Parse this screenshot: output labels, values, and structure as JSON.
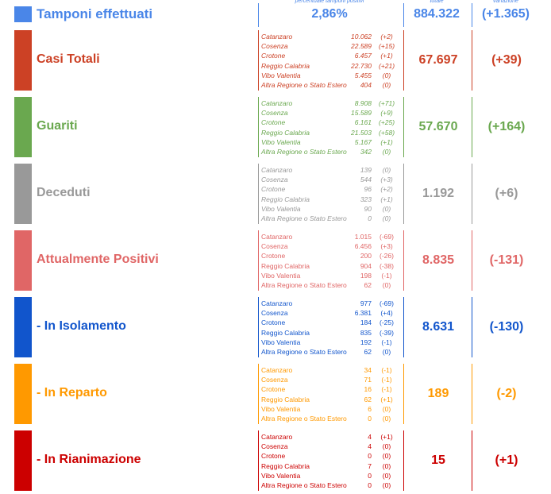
{
  "header": {
    "label": "Tamponi effettuati",
    "color": "#4a86e8",
    "percent_caption": "percentuale tamponi positivi",
    "percent": "2,86%",
    "total_caption": "totale",
    "total": "884.322",
    "variation_caption": "variazione",
    "variation": "(+1.365)"
  },
  "sections": [
    {
      "label": "Casi Totali",
      "color": "#cc4125",
      "total": "67.697",
      "variation": "(+39)",
      "rows": [
        [
          "Catanzaro",
          "10.062",
          "(+2)"
        ],
        [
          "Cosenza",
          "22.589",
          "(+15)"
        ],
        [
          "Crotone",
          "6.457",
          "(+1)"
        ],
        [
          "Reggio Calabria",
          "22.730",
          "(+21)"
        ],
        [
          "Vibo Valentia",
          "5.455",
          "(0)"
        ],
        [
          "Altra Regione o Stato Estero",
          "404",
          "(0)"
        ]
      ]
    },
    {
      "label": "Guariti",
      "color": "#6aa84f",
      "total": "57.670",
      "variation": "(+164)",
      "rows": [
        [
          "Catanzaro",
          "8.908",
          "(+71)"
        ],
        [
          "Cosenza",
          "15.589",
          "(+9)"
        ],
        [
          "Crotone",
          "6.161",
          "(+25)"
        ],
        [
          "Reggio Calabria",
          "21.503",
          "(+58)"
        ],
        [
          "Vibo Valentia",
          "5.167",
          "(+1)"
        ],
        [
          "Altra Regione o Stato Estero",
          "342",
          "(0)"
        ]
      ]
    },
    {
      "label": "Deceduti",
      "color": "#999999",
      "total": "1.192",
      "variation": "(+6)",
      "rows": [
        [
          "Catanzaro",
          "139",
          "(0)"
        ],
        [
          "Cosenza",
          "544",
          "(+3)"
        ],
        [
          "Crotone",
          "96",
          "(+2)"
        ],
        [
          "Reggio Calabria",
          "323",
          "(+1)"
        ],
        [
          "Vibo Valentia",
          "90",
          "(0)"
        ],
        [
          "Altra Regione o Stato Estero",
          "0",
          "(0)"
        ]
      ]
    },
    {
      "label": "Attualmente Positivi",
      "color": "#e06666",
      "total": "8.835",
      "variation": "(-131)",
      "rows": [
        [
          "Catanzaro",
          "1.015",
          "(-69)"
        ],
        [
          "Cosenza",
          "6.456",
          "(+3)"
        ],
        [
          "Crotone",
          "200",
          "(-26)"
        ],
        [
          "Reggio Calabria",
          "904",
          "(-38)"
        ],
        [
          "Vibo Valentia",
          "198",
          "(-1)"
        ],
        [
          "Altra Regione o Stato Estero",
          "62",
          "(0)"
        ]
      ]
    },
    {
      "label": "- In Isolamento",
      "color": "#1155cc",
      "total": "8.631",
      "variation": "(-130)",
      "rows": [
        [
          "Catanzaro",
          "977",
          "(-69)"
        ],
        [
          "Cosenza",
          "6.381",
          "(+4)"
        ],
        [
          "Crotone",
          "184",
          "(-25)"
        ],
        [
          "Reggio Calabria",
          "835",
          "(-39)"
        ],
        [
          "Vibo Valentia",
          "192",
          "(-1)"
        ],
        [
          "Altra Regione o Stato Estero",
          "62",
          "(0)"
        ]
      ]
    },
    {
      "label": "- In Reparto",
      "color": "#ff9900",
      "total": "189",
      "variation": "(-2)",
      "rows": [
        [
          "Catanzaro",
          "34",
          "(-1)"
        ],
        [
          "Cosenza",
          "71",
          "(-1)"
        ],
        [
          "Crotone",
          "16",
          "(-1)"
        ],
        [
          "Reggio Calabria",
          "62",
          "(+1)"
        ],
        [
          "Vibo Valentia",
          "6",
          "(0)"
        ],
        [
          "Altra Regione o Stato Estero",
          "0",
          "(0)"
        ]
      ]
    },
    {
      "label": "- In Rianimazione",
      "color": "#cc0000",
      "total": "15",
      "variation": "(+1)",
      "rows": [
        [
          "Catanzaro",
          "4",
          "(+1)"
        ],
        [
          "Cosenza",
          "4",
          "(0)"
        ],
        [
          "Crotone",
          "0",
          "(0)"
        ],
        [
          "Reggio Calabria",
          "7",
          "(0)"
        ],
        [
          "Vibo Valentia",
          "0",
          "(0)"
        ],
        [
          "Altra Regione o Stato Estero",
          "0",
          "(0)"
        ]
      ]
    }
  ]
}
